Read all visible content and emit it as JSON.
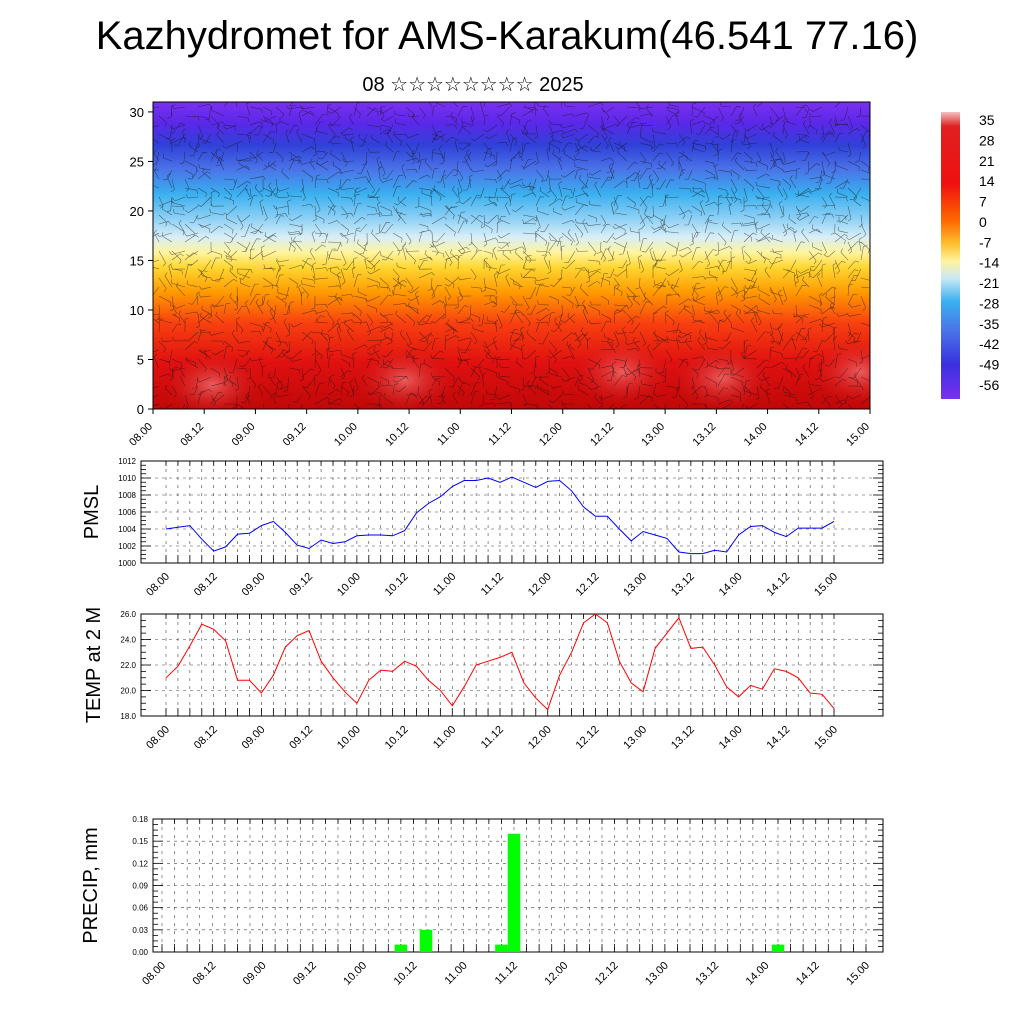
{
  "title": "Kazhydromet for AMS-Karakum(46.541 77.16)",
  "subtitle": "08 ☆☆☆☆☆☆☆☆ 2025",
  "chart_data": [
    {
      "type": "heatmap",
      "ylim": [
        0,
        31
      ],
      "yticks": [
        0,
        5,
        10,
        15,
        20,
        25,
        30
      ],
      "xtick_labels": [
        "08.00",
        "08.12",
        "09.00",
        "09.12",
        "10.00",
        "10.12",
        "11.00",
        "11.12",
        "12.00",
        "12.12",
        "13.00",
        "13.12",
        "14.00",
        "14.12",
        "15.00"
      ],
      "colorbar_labels": [
        "35",
        "28",
        "21",
        "14",
        "7",
        "0",
        "-7",
        "-14",
        "-21",
        "-28",
        "-35",
        "-42",
        "-49",
        "-56"
      ],
      "colors": {
        "hot": "#d4080a",
        "warm": "#ff9a00",
        "neutral": "#ffee77",
        "cool": "#3ab0ef",
        "cold": "#5520e8"
      }
    },
    {
      "type": "line",
      "ylabel": "PMSL",
      "ylim": [
        1000,
        1012
      ],
      "yticks": [
        1000,
        1002,
        1004,
        1006,
        1008,
        1010,
        1012
      ],
      "line_color": "#0000ff",
      "xtick_labels": [
        "08.00",
        "08.12",
        "09.00",
        "09.12",
        "10.00",
        "10.12",
        "11.00",
        "11.12",
        "12.00",
        "12.12",
        "13.00",
        "13.12",
        "14.00",
        "14.12",
        "15.00"
      ],
      "x": [
        0,
        1,
        2,
        3,
        4,
        5,
        6,
        7,
        8,
        9,
        10,
        11,
        12,
        13,
        14,
        15,
        16,
        17,
        18,
        19,
        20,
        21,
        22,
        23,
        24,
        25,
        26,
        27,
        28,
        29,
        30,
        31,
        32,
        33,
        34,
        35,
        36,
        37,
        38,
        39,
        40,
        41,
        42,
        43,
        44,
        45,
        46,
        47,
        48,
        49,
        50,
        51,
        52,
        53,
        54,
        55,
        56
      ],
      "values": [
        1004.0,
        1004.2,
        1004.4,
        1002.8,
        1001.4,
        1001.9,
        1003.4,
        1003.5,
        1004.4,
        1004.9,
        1003.6,
        1002.1,
        1001.7,
        1002.7,
        1002.3,
        1002.5,
        1003.2,
        1003.3,
        1003.3,
        1003.2,
        1003.8,
        1005.9,
        1007.0,
        1007.8,
        1009.0,
        1009.7,
        1009.7,
        1010.0,
        1009.5,
        1010.1,
        1009.5,
        1008.9,
        1009.6,
        1009.7,
        1008.5,
        1006.6,
        1005.5,
        1005.5,
        1004.0,
        1002.6,
        1003.7,
        1003.3,
        1002.9,
        1001.3,
        1001.1,
        1001.1,
        1001.5,
        1001.3,
        1003.3,
        1004.3,
        1004.4,
        1003.6,
        1003.1,
        1004.1,
        1004.1,
        1004.1,
        1004.9
      ]
    },
    {
      "type": "line",
      "ylabel": "TEMP at 2 M",
      "ylim": [
        18,
        26
      ],
      "yticks": [
        "18.0",
        "20.0",
        "22.0",
        "24.0",
        "26.0"
      ],
      "line_color": "#ff0000",
      "xtick_labels": [
        "08.00",
        "08.12",
        "09.00",
        "09.12",
        "10.00",
        "10.12",
        "11.00",
        "11.12",
        "12.00",
        "12.12",
        "13.00",
        "13.12",
        "14.00",
        "14.12",
        "15.00"
      ],
      "x": [
        0,
        1,
        2,
        3,
        4,
        5,
        6,
        7,
        8,
        9,
        10,
        11,
        12,
        13,
        14,
        15,
        16,
        17,
        18,
        19,
        20,
        21,
        22,
        23,
        24,
        25,
        26,
        27,
        28,
        29,
        30,
        31,
        32,
        33,
        34,
        35,
        36,
        37,
        38,
        39,
        40,
        41,
        42,
        43,
        44,
        45,
        46,
        47,
        48,
        49,
        50,
        51,
        52,
        53,
        54,
        55,
        56
      ],
      "values": [
        21.0,
        21.9,
        23.5,
        25.2,
        24.8,
        23.9,
        20.8,
        20.8,
        19.8,
        21.2,
        23.4,
        24.3,
        24.7,
        22.3,
        21.0,
        19.9,
        19.0,
        20.8,
        21.6,
        21.5,
        22.3,
        21.9,
        20.8,
        20.0,
        18.8,
        20.3,
        22.0,
        22.3,
        22.6,
        23.0,
        20.6,
        19.4,
        18.5,
        21.2,
        23.0,
        25.3,
        26.0,
        25.3,
        22.3,
        20.6,
        19.9,
        23.3,
        24.5,
        25.7,
        23.3,
        23.4,
        22.0,
        20.3,
        19.5,
        20.4,
        20.1,
        21.7,
        21.5,
        21.0,
        19.8,
        19.7,
        18.6
      ]
    },
    {
      "type": "bar",
      "ylabel": "PRECIP, mm",
      "ylim": [
        0,
        0.18
      ],
      "yticks": [
        "0.00",
        "0.03",
        "0.06",
        "0.09",
        "0.12",
        "0.15",
        "0.18"
      ],
      "bar_color": "#00ff00",
      "xtick_labels": [
        "08.00",
        "08.12",
        "09.00",
        "09.12",
        "10.00",
        "10.12",
        "11.00",
        "11.12",
        "12.00",
        "12.12",
        "13.00",
        "13.12",
        "14.00",
        "14.12",
        "15.00"
      ],
      "x": [
        19,
        21,
        27,
        28,
        49
      ],
      "values": [
        0.01,
        0.03,
        0.01,
        0.16,
        0.01
      ]
    }
  ]
}
